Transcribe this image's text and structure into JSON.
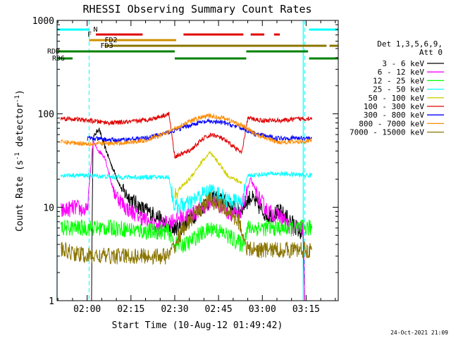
{
  "chart_data": {
    "type": "line",
    "title": "RHESSI Observing Summary Count Rates",
    "xlabel": "Start Time (10-Aug-12 01:49:42)",
    "ylabel_main": "Count Rate (s",
    "ylabel_sup1": "-1",
    "ylabel_mid": " detector",
    "ylabel_sup2": "-1",
    "ylabel_end": ")",
    "footer": "24-Oct-2021 21:09",
    "x_range": [
      "01:49:42",
      "03:26:00"
    ],
    "x_ticks": [
      "02:00",
      "02:15",
      "02:30",
      "02:45",
      "03:00",
      "03:15"
    ],
    "y_scale": "log",
    "y_range": [
      1,
      1000
    ],
    "y_ticks": [
      "1",
      "10",
      "100",
      "1000"
    ],
    "legend": {
      "header1": "Det 1,3,5,6,9,",
      "header2": "Att 0",
      "entries": [
        {
          "label": "3 - 6 keV",
          "color": "#000000"
        },
        {
          "label": "6 - 12 keV",
          "color": "#ff00ff"
        },
        {
          "label": "12 - 25 keV",
          "color": "#00ff00"
        },
        {
          "label": "25 - 50 keV",
          "color": "#00ffff"
        },
        {
          "label": "50 - 100 keV",
          "color": "#d0d000"
        },
        {
          "label": "100 - 300 keV",
          "color": "#e00000"
        },
        {
          "label": "300 - 800 keV",
          "color": "#0000ff"
        },
        {
          "label": "800 - 7000 keV",
          "color": "#ff8c00"
        },
        {
          "label": "7000 - 15000 keV",
          "color": "#8b7500"
        }
      ]
    },
    "flags": [
      {
        "label": "N",
        "color": "#00ffff",
        "segments": [
          [
            "01:49:42",
            "02:00:40"
          ],
          [
            "03:16:00",
            "03:26:00"
          ]
        ]
      },
      {
        "label": "F",
        "color": "#e00000",
        "segments": [
          [
            "02:03:00",
            "02:19:00"
          ],
          [
            "02:33:00",
            "02:53:30"
          ],
          [
            "02:56:00",
            "03:00:40"
          ],
          [
            "03:04:00",
            "03:06:00"
          ]
        ]
      },
      {
        "label": "FD2",
        "color": "#d09000",
        "segments": [
          [
            "02:00:40",
            "02:30:30"
          ]
        ]
      },
      {
        "label": "FD3",
        "color": "#8b7500",
        "segments": [
          [
            "02:06:00",
            "03:22:00"
          ],
          [
            "03:23:00",
            "03:26:00"
          ]
        ]
      },
      {
        "label": "RDD",
        "color": "#008000",
        "segments": [
          [
            "01:49:42",
            "02:30:00"
          ],
          [
            "02:54:30",
            "03:15:40"
          ]
        ]
      },
      {
        "label": "RD6",
        "color": "#008000",
        "segments": [
          [
            "01:49:42",
            "01:55:00"
          ],
          [
            "02:30:00",
            "02:54:30"
          ],
          [
            "03:16:00",
            "03:26:00"
          ]
        ]
      }
    ],
    "saa_boundaries": [
      "02:00:40",
      "03:14:30"
    ],
    "night_boundaries": [
      "01:49:42",
      "03:14:00"
    ],
    "series": [
      {
        "name": "3 - 6 keV",
        "color": "#000000",
        "data": [
          [
            "02:01:30",
            1
          ],
          [
            "02:02:00",
            55
          ],
          [
            "02:04:00",
            70
          ],
          [
            "02:05:00",
            55
          ],
          [
            "02:08:00",
            30
          ],
          [
            "02:12:00",
            15
          ],
          [
            "02:18:00",
            10
          ],
          [
            "02:24:00",
            8
          ],
          [
            "02:28:00",
            6
          ],
          [
            "02:32:00",
            6
          ],
          [
            "02:38:00",
            9
          ],
          [
            "02:43:00",
            13
          ],
          [
            "02:48:00",
            11
          ],
          [
            "02:52:00",
            9
          ],
          [
            "02:56:00",
            13
          ],
          [
            "02:59:00",
            10
          ],
          [
            "03:02:00",
            8
          ],
          [
            "03:06:00",
            9
          ],
          [
            "03:10:00",
            7
          ],
          [
            "03:14:00",
            5
          ],
          [
            "03:14:30",
            1
          ]
        ]
      },
      {
        "name": "6 - 12 keV",
        "color": "#ff00ff",
        "data": [
          [
            "01:51:00",
            9
          ],
          [
            "01:56:00",
            10
          ],
          [
            "02:00:00",
            9
          ],
          [
            "02:02:00",
            50
          ],
          [
            "02:04:00",
            40
          ],
          [
            "02:06:00",
            35
          ],
          [
            "02:09:00",
            15
          ],
          [
            "02:13:00",
            10
          ],
          [
            "02:18:00",
            8
          ],
          [
            "02:24:00",
            6
          ],
          [
            "02:28:00",
            7
          ],
          [
            "02:33:00",
            8
          ],
          [
            "02:38:00",
            9
          ],
          [
            "02:43:00",
            12
          ],
          [
            "02:48:00",
            9
          ],
          [
            "02:52:00",
            8
          ],
          [
            "02:56:00",
            20
          ],
          [
            "02:59:00",
            12
          ],
          [
            "03:02:00",
            9
          ],
          [
            "03:06:00",
            8
          ],
          [
            "03:10:00",
            6
          ],
          [
            "03:14:00",
            6
          ],
          [
            "03:14:30",
            1
          ]
        ]
      },
      {
        "name": "12 - 25 keV",
        "color": "#00ff00",
        "data": [
          [
            "01:51:00",
            6
          ],
          [
            "02:00:00",
            6
          ],
          [
            "02:10:00",
            6
          ],
          [
            "02:20:00",
            5.5
          ],
          [
            "02:28:00",
            5.5
          ],
          [
            "02:30:00",
            4
          ],
          [
            "02:34:00",
            4
          ],
          [
            "02:38:00",
            5
          ],
          [
            "02:43:00",
            6
          ],
          [
            "02:48:00",
            5
          ],
          [
            "02:53:00",
            4
          ],
          [
            "02:55:00",
            6
          ],
          [
            "03:05:00",
            6
          ],
          [
            "03:16:00",
            6
          ],
          [
            "03:17:00",
            6
          ]
        ]
      },
      {
        "name": "25 - 50 keV",
        "color": "#00ffff",
        "data": [
          [
            "01:51:00",
            22
          ],
          [
            "02:00:00",
            22
          ],
          [
            "02:10:00",
            21
          ],
          [
            "02:20:00",
            21
          ],
          [
            "02:28:00",
            21
          ],
          [
            "02:30:00",
            10
          ],
          [
            "02:35:00",
            11
          ],
          [
            "02:40:00",
            14
          ],
          [
            "02:43:00",
            15
          ],
          [
            "02:48:00",
            12
          ],
          [
            "02:53:00",
            11
          ],
          [
            "02:55:00",
            22
          ],
          [
            "03:05:00",
            23
          ],
          [
            "03:15:00",
            22
          ],
          [
            "03:17:00",
            22
          ]
        ]
      },
      {
        "name": "50 - 100 keV",
        "color": "#d0d000",
        "data": [
          [
            "02:30:00",
            14
          ],
          [
            "02:35:00",
            20
          ],
          [
            "02:39:00",
            30
          ],
          [
            "02:42:00",
            38
          ],
          [
            "02:45:00",
            30
          ],
          [
            "02:48:00",
            22
          ],
          [
            "02:53:00",
            18
          ]
        ]
      },
      {
        "name": "100 - 300 keV",
        "color": "#e00000",
        "data": [
          [
            "01:51:00",
            90
          ],
          [
            "01:55:00",
            88
          ],
          [
            "02:00:00",
            85
          ],
          [
            "02:08:00",
            80
          ],
          [
            "02:15:00",
            82
          ],
          [
            "02:22:00",
            88
          ],
          [
            "02:28:00",
            100
          ],
          [
            "02:30:00",
            35
          ],
          [
            "02:35:00",
            40
          ],
          [
            "02:40:00",
            55
          ],
          [
            "02:43:00",
            60
          ],
          [
            "02:46:00",
            55
          ],
          [
            "02:50:00",
            45
          ],
          [
            "02:53:00",
            38
          ],
          [
            "02:55:00",
            90
          ],
          [
            "03:00:00",
            85
          ],
          [
            "03:07:00",
            85
          ],
          [
            "03:12:00",
            88
          ],
          [
            "03:17:00",
            90
          ]
        ]
      },
      {
        "name": "300 - 800 keV",
        "color": "#0000ff",
        "data": [
          [
            "02:00:00",
            55
          ],
          [
            "02:10:00",
            52
          ],
          [
            "02:20:00",
            55
          ],
          [
            "02:27:00",
            62
          ],
          [
            "02:32:00",
            70
          ],
          [
            "02:38:00",
            80
          ],
          [
            "02:42:00",
            83
          ],
          [
            "02:47:00",
            80
          ],
          [
            "02:53:00",
            70
          ],
          [
            "02:58:00",
            60
          ],
          [
            "03:05:00",
            55
          ],
          [
            "03:12:00",
            55
          ],
          [
            "03:17:00",
            55
          ]
        ]
      },
      {
        "name": "800 - 7000 keV",
        "color": "#ff8c00",
        "data": [
          [
            "01:51:00",
            50
          ],
          [
            "02:00:00",
            48
          ],
          [
            "02:10:00",
            48
          ],
          [
            "02:20:00",
            52
          ],
          [
            "02:27:00",
            62
          ],
          [
            "02:32:00",
            75
          ],
          [
            "02:38:00",
            90
          ],
          [
            "02:42:00",
            95
          ],
          [
            "02:47:00",
            90
          ],
          [
            "02:53:00",
            75
          ],
          [
            "02:58:00",
            60
          ],
          [
            "03:05:00",
            50
          ],
          [
            "03:12:00",
            50
          ],
          [
            "03:17:00",
            52
          ]
        ]
      },
      {
        "name": "7000 - 15000 keV",
        "color": "#8b7500",
        "data": [
          [
            "01:51:00",
            3.5
          ],
          [
            "02:00:00",
            3
          ],
          [
            "02:10:00",
            3
          ],
          [
            "02:20:00",
            3
          ],
          [
            "02:28:00",
            3
          ],
          [
            "02:33:00",
            6
          ],
          [
            "02:38:00",
            9
          ],
          [
            "02:42:00",
            12
          ],
          [
            "02:47:00",
            10
          ],
          [
            "02:52:00",
            7
          ],
          [
            "02:55:00",
            3.5
          ],
          [
            "03:05:00",
            3.5
          ],
          [
            "03:17:00",
            3.5
          ]
        ]
      }
    ]
  }
}
